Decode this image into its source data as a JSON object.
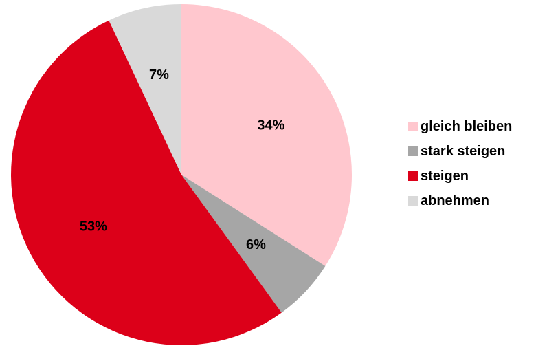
{
  "chart_data": {
    "type": "pie",
    "start_angle_deg": 0,
    "direction": "clockwise",
    "slices": [
      {
        "label": "gleich bleiben",
        "value": 34,
        "value_label": "34%",
        "color": "#FFC7CE"
      },
      {
        "label": "stark steigen",
        "value": 6,
        "value_label": "6%",
        "color": "#A6A6A6"
      },
      {
        "label": "steigen",
        "value": 53,
        "value_label": "53%",
        "color": "#DC0019"
      },
      {
        "label": "abnehmen",
        "value": 7,
        "value_label": "7%",
        "color": "#D9D9D9"
      }
    ],
    "legend": {
      "placement": "right",
      "entries": [
        "gleich bleiben",
        "stark steigen",
        "steigen",
        "abnehmen"
      ]
    }
  }
}
